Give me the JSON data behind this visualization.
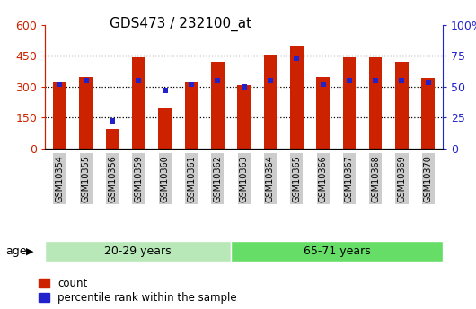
{
  "title": "GDS473 / 232100_at",
  "categories": [
    "GSM10354",
    "GSM10355",
    "GSM10356",
    "GSM10359",
    "GSM10360",
    "GSM10361",
    "GSM10362",
    "GSM10363",
    "GSM10364",
    "GSM10365",
    "GSM10366",
    "GSM10367",
    "GSM10368",
    "GSM10369",
    "GSM10370"
  ],
  "counts": [
    320,
    345,
    95,
    440,
    195,
    320,
    420,
    305,
    455,
    500,
    345,
    440,
    440,
    420,
    340
  ],
  "percentiles": [
    52,
    55,
    22,
    55,
    47,
    52,
    55,
    50,
    55,
    73,
    52,
    55,
    55,
    55,
    53
  ],
  "bar_color": "#cc2200",
  "dot_color": "#2222cc",
  "left_ylim": [
    0,
    600
  ],
  "right_ylim": [
    0,
    100
  ],
  "left_yticks": [
    0,
    150,
    300,
    450,
    600
  ],
  "right_yticks": [
    0,
    25,
    50,
    75,
    100
  ],
  "right_yticklabels": [
    "0",
    "25",
    "50",
    "75",
    "100%"
  ],
  "group1_label": "20-29 years",
  "group2_label": "65-71 years",
  "group1_count": 7,
  "group2_count": 8,
  "age_label": "age",
  "legend_count": "count",
  "legend_percentile": "percentile rank within the sample",
  "group1_color": "#b8e8b8",
  "group2_color": "#66dd66",
  "tick_color_left": "#cc2200",
  "tick_color_right": "#2222cc",
  "xticklabel_bg": "#cccccc",
  "dotted_lines": [
    150,
    300,
    450
  ],
  "bar_width": 0.5
}
